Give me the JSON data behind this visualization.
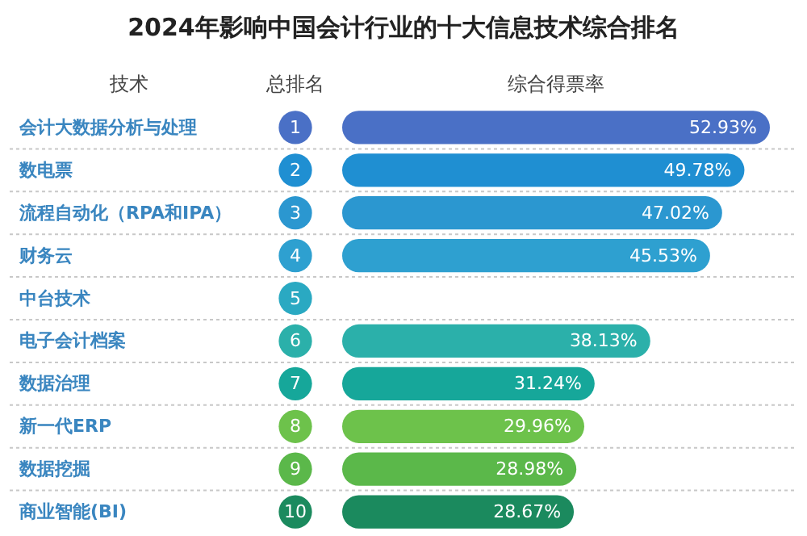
{
  "chart_data": {
    "type": "bar",
    "orientation": "horizontal",
    "title": "2024年影响中国会计行业的十大信息技术综合排名",
    "ylabel": "技术",
    "xlabel": "综合得票率",
    "grid": "y",
    "categories": [
      "会计大数据分析与处理",
      "数电票",
      "流程自动化（RPA和IPA）",
      "财务云",
      "中台技术",
      "电子会计档案",
      "数据治理",
      "新一代ERP",
      "数据挖掘",
      "商业智能(BI)"
    ],
    "values": [
      52.93,
      49.78,
      47.02,
      45.53,
      null,
      38.13,
      31.24,
      29.96,
      28.98,
      28.67
    ],
    "value_labels": [
      "52.93%",
      "49.78%",
      "47.02%",
      "45.53%",
      null,
      "38.13%",
      "31.24%",
      "29.96%",
      "28.98%",
      "28.67%"
    ],
    "colors": [
      "#4a70c6",
      "#1f8fd2",
      "#2b97d0",
      "#2ea0d0",
      "#2aa9c2",
      "#2bb0aa",
      "#16a79a",
      "#6dc24b",
      "#5bb84a",
      "#1b8a5e"
    ],
    "annotations": [
      "总排名",
      "1",
      "2",
      "3",
      "4",
      "5",
      "6",
      "7",
      "8",
      "9",
      "10"
    ]
  }
}
